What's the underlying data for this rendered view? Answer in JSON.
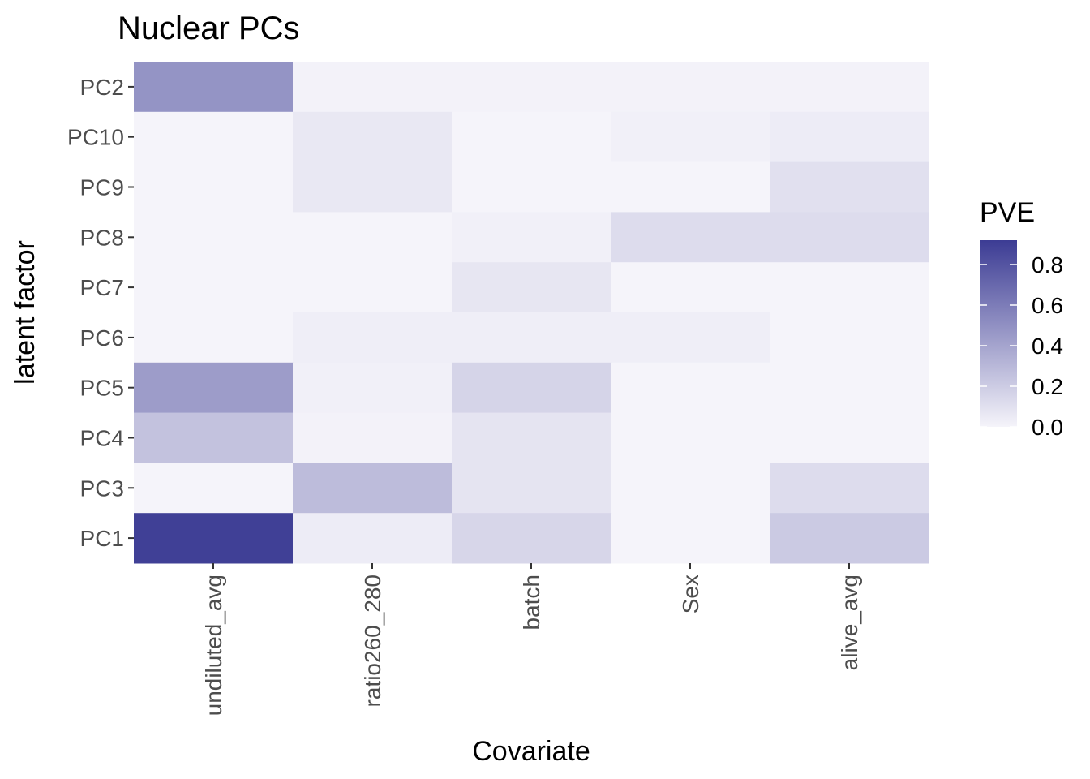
{
  "chart_data": {
    "type": "heatmap",
    "title": "Nuclear PCs",
    "xlabel": "Covariate",
    "ylabel": "latent factor",
    "x_categories": [
      "undiluted_avg",
      "ratio260_280",
      "batch",
      "Sex",
      "alive_avg"
    ],
    "y_categories": [
      "PC2",
      "PC10",
      "PC9",
      "PC8",
      "PC7",
      "PC6",
      "PC5",
      "PC4",
      "PC3",
      "PC1"
    ],
    "values": [
      [
        0.48,
        0.01,
        0.01,
        0.01,
        0.01
      ],
      [
        0.0,
        0.06,
        0.0,
        0.02,
        0.04
      ],
      [
        0.0,
        0.06,
        0.0,
        0.0,
        0.1
      ],
      [
        0.0,
        0.0,
        0.02,
        0.12,
        0.12
      ],
      [
        0.0,
        0.0,
        0.07,
        0.0,
        0.0
      ],
      [
        0.0,
        0.03,
        0.03,
        0.03,
        0.0
      ],
      [
        0.44,
        0.02,
        0.16,
        0.0,
        0.0
      ],
      [
        0.25,
        0.01,
        0.08,
        0.0,
        0.0
      ],
      [
        0.0,
        0.28,
        0.08,
        0.0,
        0.12
      ],
      [
        0.9,
        0.04,
        0.15,
        0.0,
        0.21
      ]
    ],
    "legend": {
      "title": "PVE",
      "ticks": [
        0.0,
        0.2,
        0.4,
        0.6,
        0.8
      ],
      "tick_labels": [
        "0.0",
        "0.2",
        "0.4",
        "0.6",
        "0.8"
      ],
      "range": [
        0,
        0.92
      ],
      "low_color": "#f5f4fa",
      "high_color": "#3c3c94",
      "placement": "right"
    },
    "background_color": "#f4f4f9",
    "grid": false
  }
}
